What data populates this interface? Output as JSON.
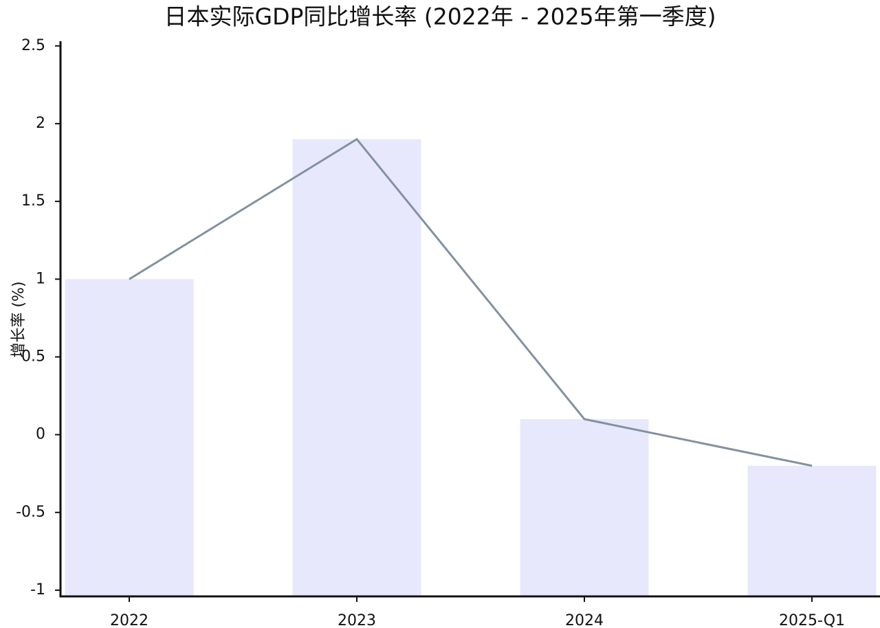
{
  "chart_data": {
    "type": "bar_line",
    "title": "日本实际GDP同比增长率 (2022年 - 2025年第一季度)",
    "y_label": "增长率 (%)",
    "categories": [
      "2022",
      "2023",
      "2024",
      "2025-Q1"
    ],
    "values": [
      1.0,
      1.9,
      0.1,
      -0.2
    ],
    "bar_color": "#e8e8fc",
    "line_color": "#8391a2",
    "ylim": [
      -1.04,
      2.53
    ],
    "yticks": [
      -1,
      -0.5,
      0,
      0.5,
      1,
      1.5,
      2,
      2.5
    ],
    "grid": false
  }
}
